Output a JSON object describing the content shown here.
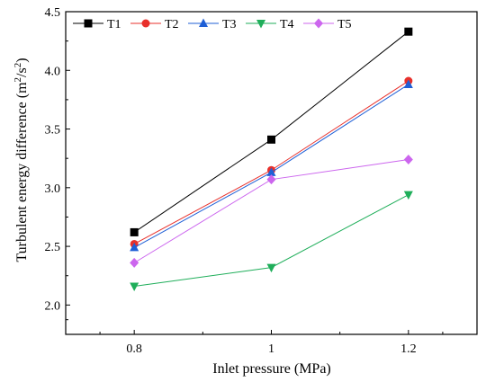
{
  "chart_data": {
    "type": "line",
    "title": "",
    "xlabel": "Inlet pressure (MPa)",
    "ylabel": {
      "main": "Turbulent energy difference (m",
      "sup1": "2",
      "mid": "/s",
      "sup2": "2",
      "end": ")"
    },
    "x": [
      0.8,
      1.0,
      1.2
    ],
    "x_tick_labels": [
      "0.8",
      "1",
      "1.2"
    ],
    "xlim": [
      0.7,
      1.3
    ],
    "ylim": [
      1.75,
      4.5
    ],
    "y_ticks": [
      2.0,
      2.5,
      3.0,
      3.5,
      4.0,
      4.5
    ],
    "y_tick_labels": [
      "2.0",
      "2.5",
      "3.0",
      "3.5",
      "4.0",
      "4.5"
    ],
    "grid": false,
    "legend_position": "top",
    "series": [
      {
        "name": "T1",
        "values": [
          2.62,
          3.41,
          4.33
        ],
        "color": "#000000",
        "marker": "square"
      },
      {
        "name": "T2",
        "values": [
          2.52,
          3.15,
          3.91
        ],
        "color": "#e8302b",
        "marker": "circle"
      },
      {
        "name": "T3",
        "values": [
          2.49,
          3.13,
          3.88
        ],
        "color": "#1f5fd6",
        "marker": "triangle-up"
      },
      {
        "name": "T4",
        "values": [
          2.16,
          2.32,
          2.94
        ],
        "color": "#1fae5a",
        "marker": "triangle-down"
      },
      {
        "name": "T5",
        "values": [
          2.36,
          3.07,
          3.24
        ],
        "color": "#cc66ee",
        "marker": "diamond"
      }
    ]
  }
}
